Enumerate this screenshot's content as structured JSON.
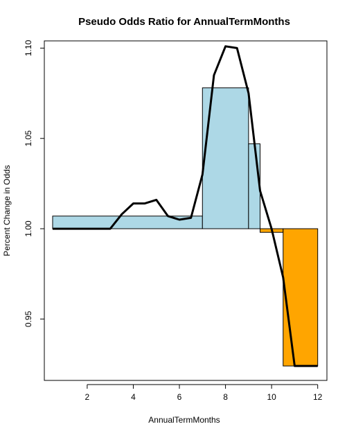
{
  "chart_data": {
    "type": "bar",
    "title": "Pseudo Odds Ratio for AnnualTermMonths",
    "xlabel": "AnnualTermMonths",
    "ylabel": "Percent Change in Odds",
    "xlim": [
      0.14,
      12.4
    ],
    "ylim": [
      0.916,
      1.104
    ],
    "baseline": 1.0,
    "xticks": [
      2,
      4,
      6,
      8,
      10,
      12
    ],
    "yticks": [
      0.95,
      1.0,
      1.05,
      1.1
    ],
    "xtick_labels": [
      "2",
      "4",
      "6",
      "8",
      "10",
      "12"
    ],
    "ytick_labels": [
      "0.95",
      "1.00",
      "1.05",
      "1.10"
    ],
    "bars": [
      {
        "x0": 0.5,
        "x1": 7.0,
        "value": 1.007
      },
      {
        "x0": 7.0,
        "x1": 9.0,
        "value": 1.078
      },
      {
        "x0": 9.0,
        "x1": 9.5,
        "value": 1.047
      },
      {
        "x0": 9.5,
        "x1": 10.5,
        "value": 0.998
      },
      {
        "x0": 10.5,
        "x1": 12.0,
        "value": 0.924
      }
    ],
    "line": {
      "x": [
        0.5,
        1.0,
        2.0,
        3.0,
        3.5,
        4.0,
        4.5,
        5.0,
        5.5,
        6.0,
        6.5,
        7.0,
        7.5,
        8.0,
        8.5,
        9.0,
        9.5,
        10.0,
        10.5,
        11.0,
        11.5,
        12.0
      ],
      "y": [
        1.0,
        1.0,
        1.0,
        1.0,
        1.008,
        1.014,
        1.014,
        1.016,
        1.007,
        1.005,
        1.006,
        1.03,
        1.085,
        1.101,
        1.1,
        1.075,
        1.021,
        1.0,
        0.973,
        0.924,
        0.924,
        0.924
      ]
    },
    "colors": {
      "positive_fill": "#add8e6",
      "negative_fill": "#ffa500",
      "bar_stroke": "#000000",
      "line": "#000000"
    },
    "grid": false,
    "legend": "none"
  }
}
